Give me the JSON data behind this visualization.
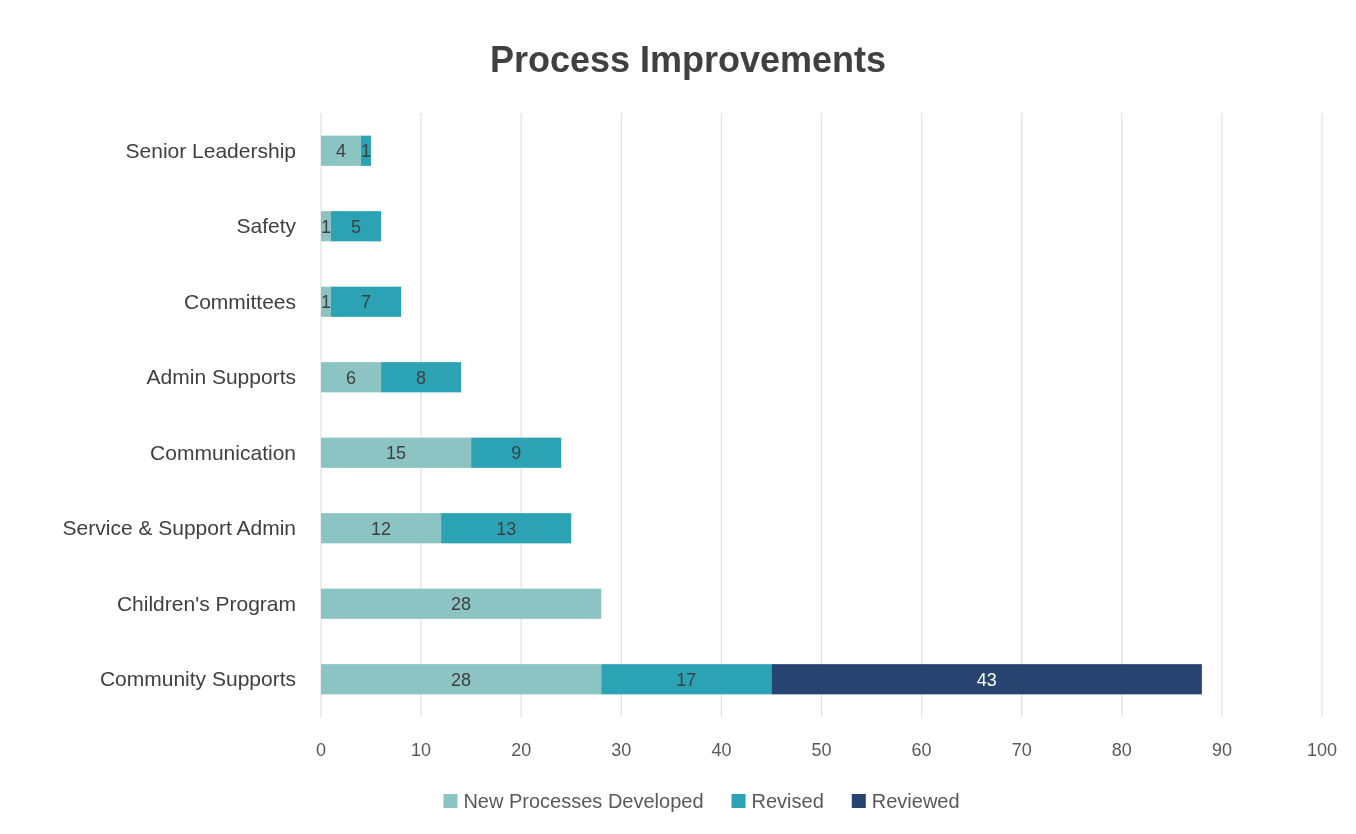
{
  "chart_data": {
    "type": "bar",
    "title": "Process Improvements",
    "orientation": "horizontal",
    "stacked": true,
    "categories": [
      "Senior Leadership",
      "Safety",
      "Committees",
      "Admin Supports",
      "Communication",
      "Service & Support Admin",
      "Children's Program",
      "Community Supports"
    ],
    "series": [
      {
        "name": "New Processes Developed",
        "color": "#8cc3c3",
        "values": [
          4,
          1,
          1,
          6,
          15,
          12,
          28,
          28
        ]
      },
      {
        "name": "Revised",
        "color": "#2ba3b4",
        "values": [
          1,
          5,
          7,
          8,
          9,
          13,
          null,
          17
        ]
      },
      {
        "name": "Reviewed",
        "color": "#274470",
        "values": [
          null,
          null,
          null,
          null,
          null,
          null,
          null,
          43
        ]
      }
    ],
    "xlim": [
      0,
      100
    ],
    "xticks": [
      0,
      10,
      20,
      30,
      40,
      50,
      60,
      70,
      80,
      90,
      100
    ],
    "grid": "x",
    "legend": "bottom",
    "data_labels": true
  }
}
